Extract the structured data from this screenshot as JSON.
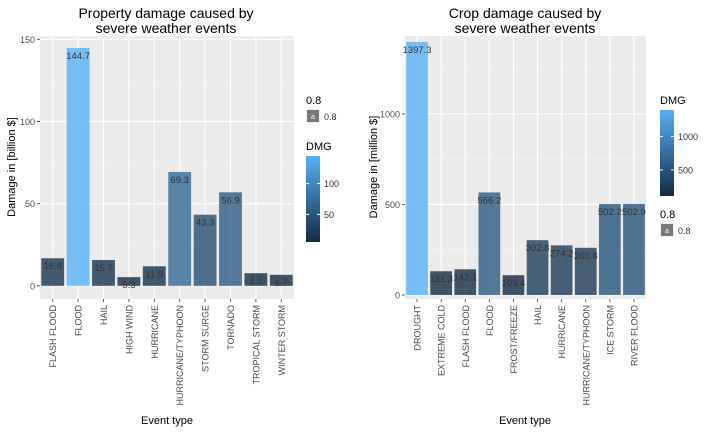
{
  "chart_data": [
    {
      "type": "bar",
      "title": [
        "Property damage caused by",
        "severe weather events"
      ],
      "xlabel": "Event type",
      "ylabel": "Damage in [billion $]",
      "categories": [
        "FLASH FLOOD",
        "FLOOD",
        "HAIL",
        "HIGH WIND",
        "HURRICANE",
        "HURRICANE/TYPHOON",
        "STORM SURGE",
        "TORNADO",
        "TROPICAL STORM",
        "WINTER STORM"
      ],
      "values": [
        16.8,
        144.7,
        15.7,
        5.3,
        11.9,
        69.3,
        43.3,
        56.9,
        7.7,
        6.7
      ],
      "data_labels": [
        "16.8",
        "144.7",
        "15.7",
        "5.3",
        "11.9",
        "69.3",
        "43.3",
        "56.9",
        "7.7",
        "6.7"
      ],
      "ylim": [
        -8,
        152
      ],
      "yticks": [
        0,
        50,
        100,
        150
      ],
      "grid": true,
      "color_scale": {
        "low": "#132b43",
        "high": "#56b1f7",
        "min": 5.3,
        "max": 144.7
      },
      "alpha_legend": {
        "title": "0.8",
        "key": "a",
        "label": "0.8"
      },
      "fill_legend": {
        "title": "DMG",
        "breaks": [
          50,
          100
        ]
      },
      "legend_position": "right"
    },
    {
      "type": "bar",
      "title": [
        "Crop damage caused by",
        "severe weather events"
      ],
      "xlabel": "Event type",
      "ylabel": "Damage in [million $]",
      "categories": [
        "DROUGHT",
        "EXTREME COLD",
        "FLASH FLOOD",
        "FLOOD",
        "FROST/FREEZE",
        "HAIL",
        "HURRICANE",
        "HURRICANE/TYPHOON",
        "ICE STORM",
        "RIVER FLOOD"
      ],
      "values": [
        1397.3,
        131.3,
        142.1,
        566.2,
        109.4,
        302.8,
        274.2,
        260.8,
        502.2,
        502.9
      ],
      "data_labels": [
        "1397.3",
        "131.3",
        "142.1",
        "566.2",
        "109.4",
        "302.8",
        "274.2",
        "260.8",
        "502.2",
        "502.9"
      ],
      "ylim": [
        -22,
        1430
      ],
      "yticks": [
        0,
        500,
        1000
      ],
      "grid": true,
      "color_scale": {
        "low": "#132b43",
        "high": "#56b1f7",
        "min": 109.4,
        "max": 1397.3
      },
      "alpha_legend": {
        "title": "0.8",
        "key": "a",
        "label": "0.8"
      },
      "fill_legend": {
        "title": "DMG",
        "breaks": [
          500,
          1000
        ]
      },
      "legend_position": "right"
    }
  ]
}
